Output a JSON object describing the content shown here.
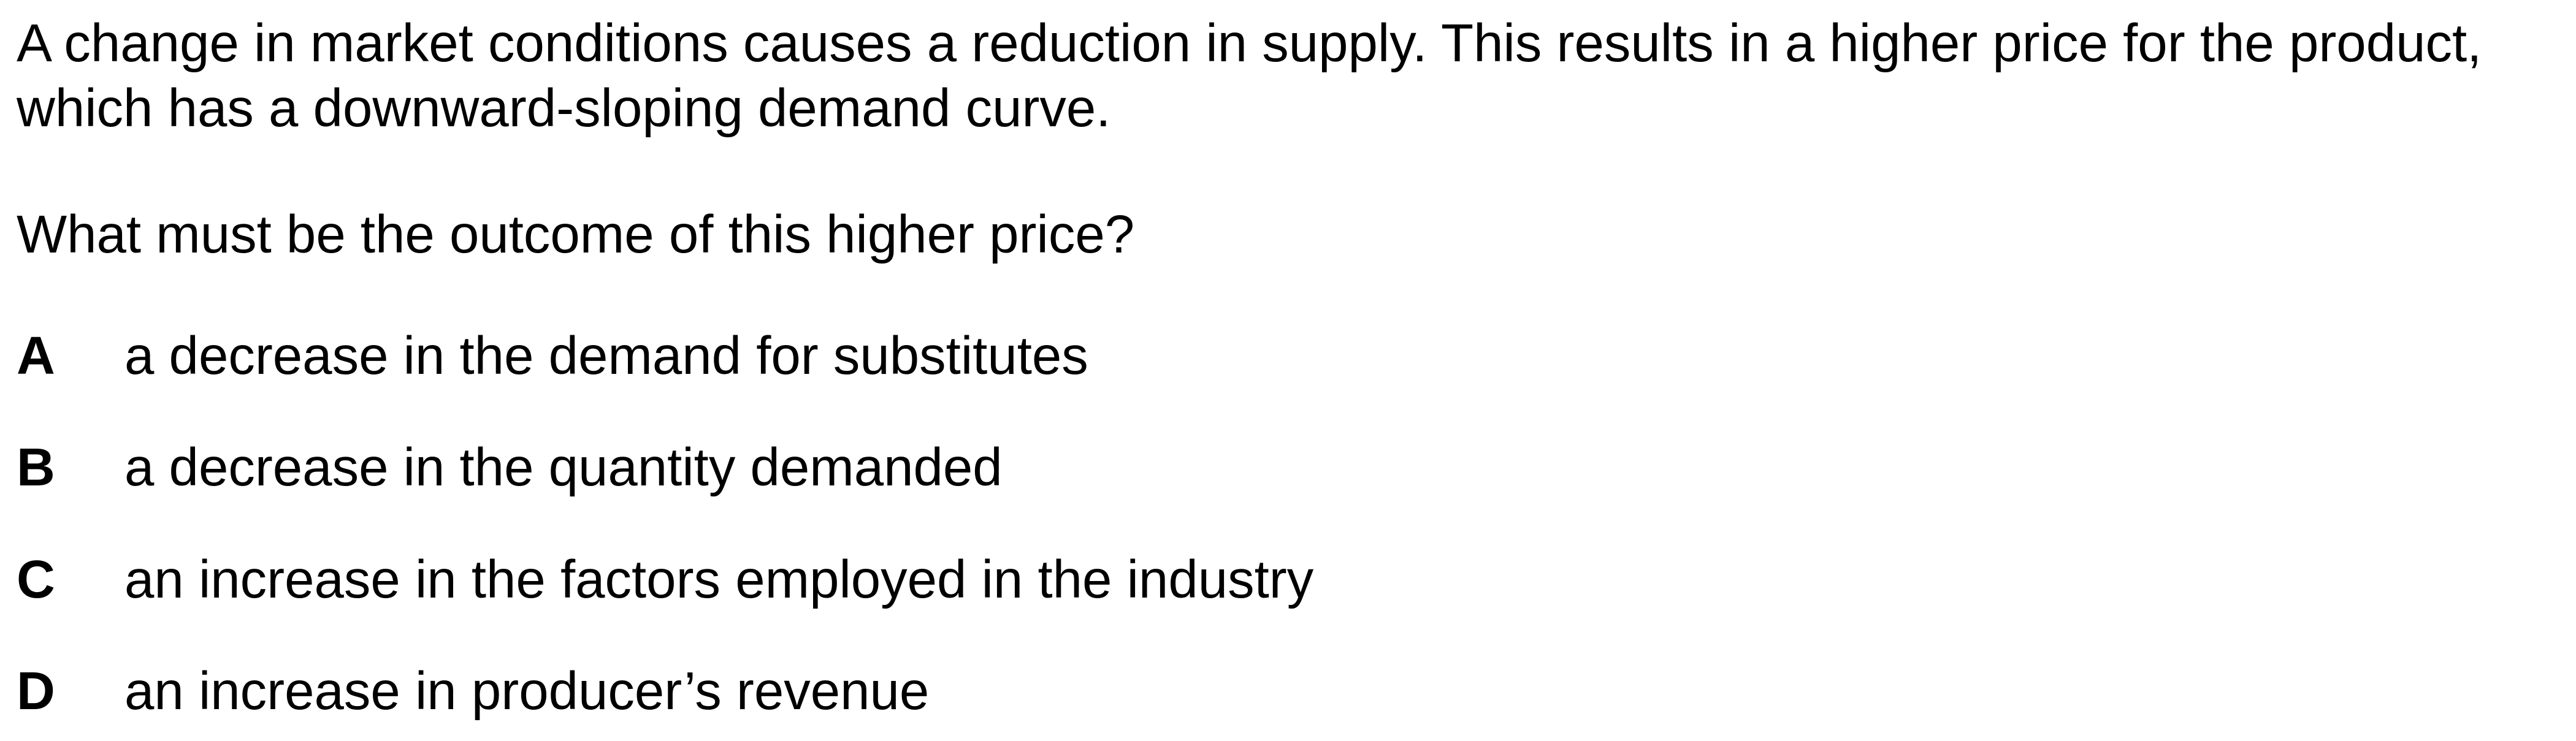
{
  "question": {
    "stem": "A change in market conditions causes a reduction in supply. This results in a higher price for the product, which has a downward-sloping demand curve.",
    "prompt": "What must be the outcome of this higher price?",
    "options": [
      {
        "letter": "A",
        "text": "a decrease in the demand for substitutes"
      },
      {
        "letter": "B",
        "text": "a decrease in the quantity demanded"
      },
      {
        "letter": "C",
        "text": "an increase in the factors employed in the industry"
      },
      {
        "letter": "D",
        "text": "an increase in producer’s revenue"
      }
    ]
  }
}
